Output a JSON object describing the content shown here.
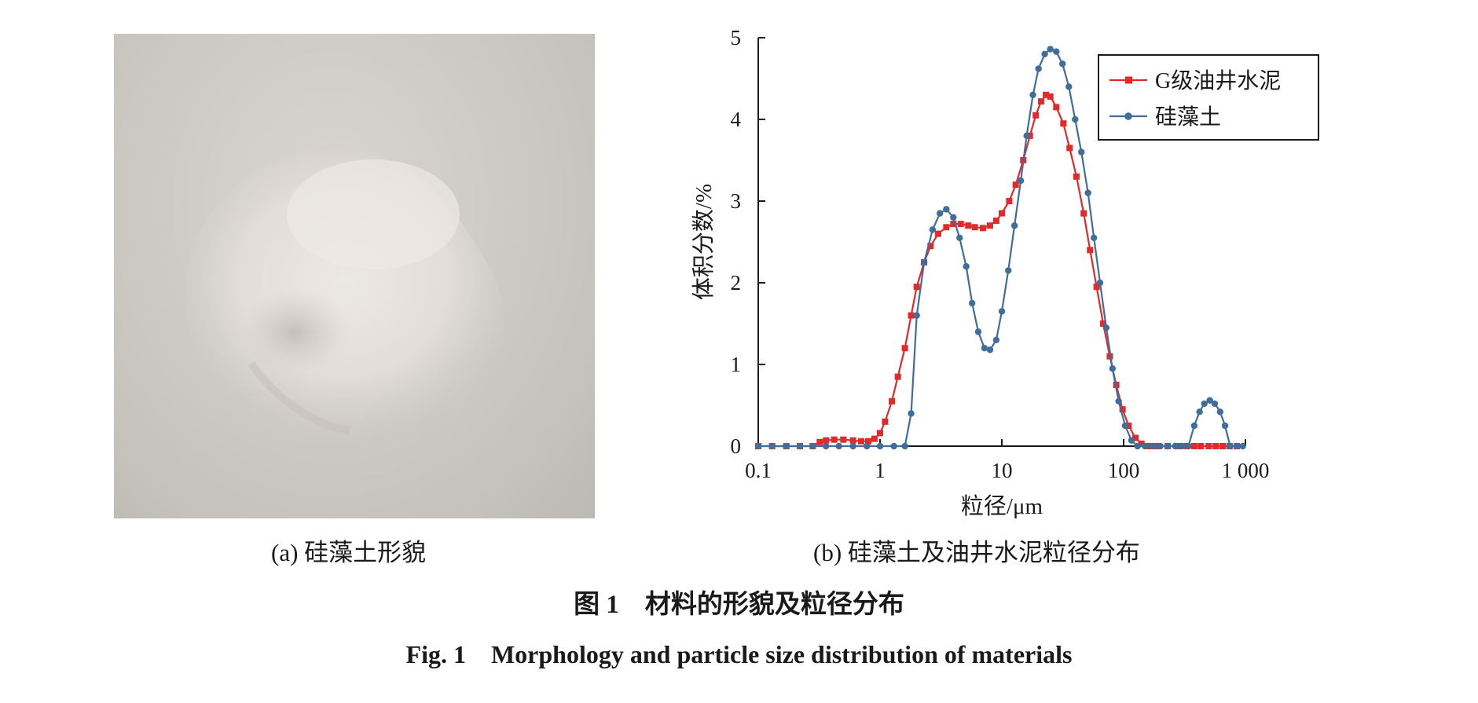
{
  "panel_a": {
    "caption": "(a) 硅藻土形貌"
  },
  "panel_b": {
    "caption": "(b) 硅藻土及油井水泥粒径分布"
  },
  "figure": {
    "caption_cn": "图 1　材料的形貌及粒径分布",
    "caption_en": "Fig. 1　Morphology and particle size distribution of materials"
  },
  "colors": {
    "cement": "#e32a2a",
    "diatomite": "#3f6e9c"
  },
  "chart_data": {
    "type": "line",
    "xscale": "log",
    "xlim": [
      0.1,
      1000
    ],
    "ylim": [
      0,
      5
    ],
    "xlabel": "粒径/μm",
    "ylabel": "体积分数/%",
    "xticks": [
      0.1,
      1,
      10,
      100,
      1000
    ],
    "xtick_labels": [
      "0.1",
      "1",
      "10",
      "100",
      "1 000"
    ],
    "yticks": [
      0,
      1,
      2,
      3,
      4,
      5
    ],
    "ytick_labels": [
      "0",
      "1",
      "2",
      "3",
      "4",
      "5"
    ],
    "legend_position": "top-right",
    "grid": false,
    "series": [
      {
        "name": "G级油井水泥",
        "color": "#e32a2a",
        "marker": "square",
        "points": [
          [
            0.1,
            0
          ],
          [
            0.13,
            0
          ],
          [
            0.17,
            0
          ],
          [
            0.22,
            0
          ],
          [
            0.28,
            0
          ],
          [
            0.32,
            0.05
          ],
          [
            0.36,
            0.07
          ],
          [
            0.42,
            0.08
          ],
          [
            0.5,
            0.08
          ],
          [
            0.6,
            0.07
          ],
          [
            0.7,
            0.06
          ],
          [
            0.8,
            0.06
          ],
          [
            0.9,
            0.09
          ],
          [
            1.0,
            0.16
          ],
          [
            1.1,
            0.3
          ],
          [
            1.25,
            0.55
          ],
          [
            1.4,
            0.85
          ],
          [
            1.6,
            1.2
          ],
          [
            1.8,
            1.6
          ],
          [
            2.0,
            1.95
          ],
          [
            2.3,
            2.25
          ],
          [
            2.6,
            2.45
          ],
          [
            3.0,
            2.6
          ],
          [
            3.5,
            2.68
          ],
          [
            4.0,
            2.72
          ],
          [
            4.6,
            2.72
          ],
          [
            5.3,
            2.7
          ],
          [
            6.0,
            2.68
          ],
          [
            7.0,
            2.67
          ],
          [
            8.0,
            2.7
          ],
          [
            9.0,
            2.76
          ],
          [
            10.0,
            2.85
          ],
          [
            11.5,
            3.0
          ],
          [
            13.0,
            3.2
          ],
          [
            15.0,
            3.5
          ],
          [
            17.0,
            3.8
          ],
          [
            19.0,
            4.05
          ],
          [
            21.0,
            4.22
          ],
          [
            23.0,
            4.3
          ],
          [
            25.0,
            4.28
          ],
          [
            28.0,
            4.15
          ],
          [
            32.0,
            3.95
          ],
          [
            36.0,
            3.65
          ],
          [
            41.0,
            3.3
          ],
          [
            47.0,
            2.85
          ],
          [
            53.0,
            2.4
          ],
          [
            60.0,
            1.95
          ],
          [
            68.0,
            1.5
          ],
          [
            77.0,
            1.1
          ],
          [
            87.0,
            0.75
          ],
          [
            98.0,
            0.45
          ],
          [
            110.0,
            0.25
          ],
          [
            125.0,
            0.1
          ],
          [
            140.0,
            0.03
          ],
          [
            160.0,
            0
          ],
          [
            190.0,
            0
          ],
          [
            230.0,
            0
          ],
          [
            280.0,
            0
          ],
          [
            330.0,
            0
          ],
          [
            380.0,
            0
          ],
          [
            430.0,
            0
          ],
          [
            500.0,
            0
          ],
          [
            570.0,
            0
          ],
          [
            650.0,
            0
          ],
          [
            740.0,
            0
          ],
          [
            850.0,
            0
          ]
        ]
      },
      {
        "name": "硅藻土",
        "color": "#3f6e9c",
        "marker": "circle",
        "points": [
          [
            0.1,
            0
          ],
          [
            0.13,
            0
          ],
          [
            0.17,
            0
          ],
          [
            0.22,
            0
          ],
          [
            0.28,
            0
          ],
          [
            0.36,
            0
          ],
          [
            0.46,
            0
          ],
          [
            0.6,
            0
          ],
          [
            0.78,
            0
          ],
          [
            1.0,
            0
          ],
          [
            1.3,
            0
          ],
          [
            1.6,
            0
          ],
          [
            1.8,
            0.4
          ],
          [
            2.0,
            1.6
          ],
          [
            2.3,
            2.25
          ],
          [
            2.7,
            2.65
          ],
          [
            3.1,
            2.85
          ],
          [
            3.5,
            2.9
          ],
          [
            4.0,
            2.8
          ],
          [
            4.5,
            2.55
          ],
          [
            5.1,
            2.2
          ],
          [
            5.7,
            1.75
          ],
          [
            6.4,
            1.4
          ],
          [
            7.2,
            1.2
          ],
          [
            8.0,
            1.18
          ],
          [
            9.0,
            1.3
          ],
          [
            10.0,
            1.65
          ],
          [
            11.3,
            2.15
          ],
          [
            12.7,
            2.7
          ],
          [
            14.3,
            3.25
          ],
          [
            16.0,
            3.8
          ],
          [
            18.0,
            4.3
          ],
          [
            20.0,
            4.62
          ],
          [
            22.5,
            4.8
          ],
          [
            25.0,
            4.86
          ],
          [
            28.0,
            4.83
          ],
          [
            31.5,
            4.68
          ],
          [
            35.5,
            4.4
          ],
          [
            40.0,
            4.0
          ],
          [
            45.0,
            3.6
          ],
          [
            51.0,
            3.1
          ],
          [
            57.0,
            2.55
          ],
          [
            64.0,
            2.0
          ],
          [
            72.0,
            1.45
          ],
          [
            81.0,
            0.95
          ],
          [
            91.0,
            0.55
          ],
          [
            103.0,
            0.25
          ],
          [
            116.0,
            0.07
          ],
          [
            130.0,
            0
          ],
          [
            150.0,
            0
          ],
          [
            175.0,
            0
          ],
          [
            200.0,
            0
          ],
          [
            230.0,
            0
          ],
          [
            265.0,
            0
          ],
          [
            300.0,
            0
          ],
          [
            340.0,
            0
          ],
          [
            380.0,
            0.25
          ],
          [
            420.0,
            0.42
          ],
          [
            460.0,
            0.52
          ],
          [
            510.0,
            0.56
          ],
          [
            560.0,
            0.52
          ],
          [
            620.0,
            0.42
          ],
          [
            680.0,
            0.25
          ],
          [
            750.0,
            0
          ],
          [
            850.0,
            0
          ],
          [
            950.0,
            0
          ]
        ]
      }
    ]
  }
}
